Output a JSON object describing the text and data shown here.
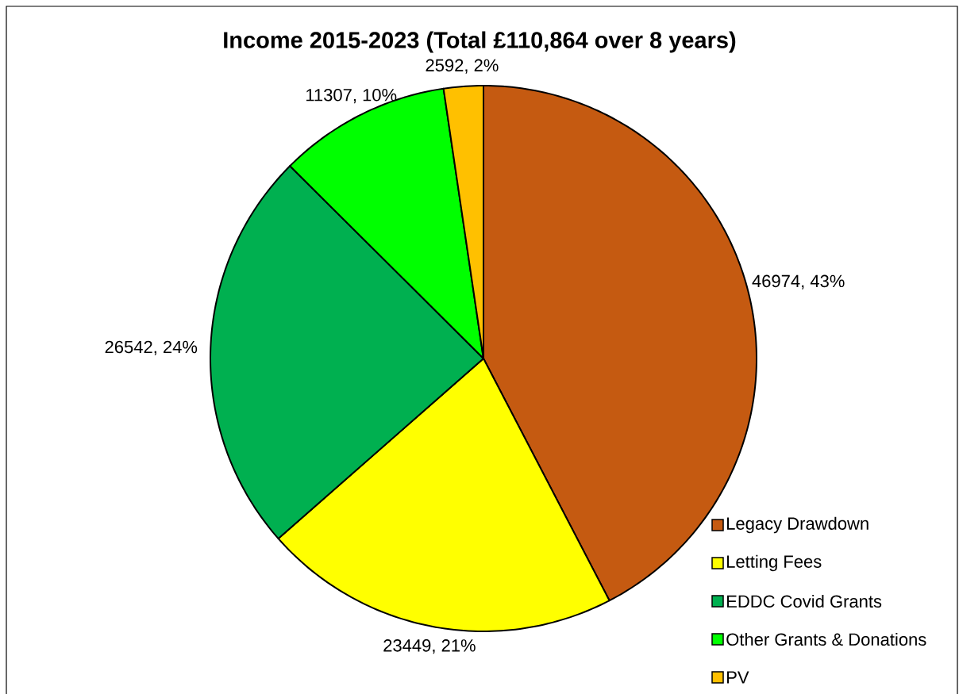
{
  "chart_data": {
    "type": "pie",
    "title": "Income 2015-2023 (Total £110,864 over 8 years)",
    "categories": [
      "Legacy Drawdown",
      "Letting Fees",
      "EDDC Covid Grants",
      "Other Grants & Donations",
      "PV"
    ],
    "values": [
      46974,
      23449,
      26542,
      11307,
      2592
    ],
    "colors": [
      "#c55a11",
      "#ffff00",
      "#00b050",
      "#00ff00",
      "#ffc000"
    ],
    "value_labels": [
      "46974, 43%",
      "23449, 21%",
      "26542, 24%",
      "11307, 10%",
      "2592, 2%"
    ],
    "legend": "bottom right"
  }
}
